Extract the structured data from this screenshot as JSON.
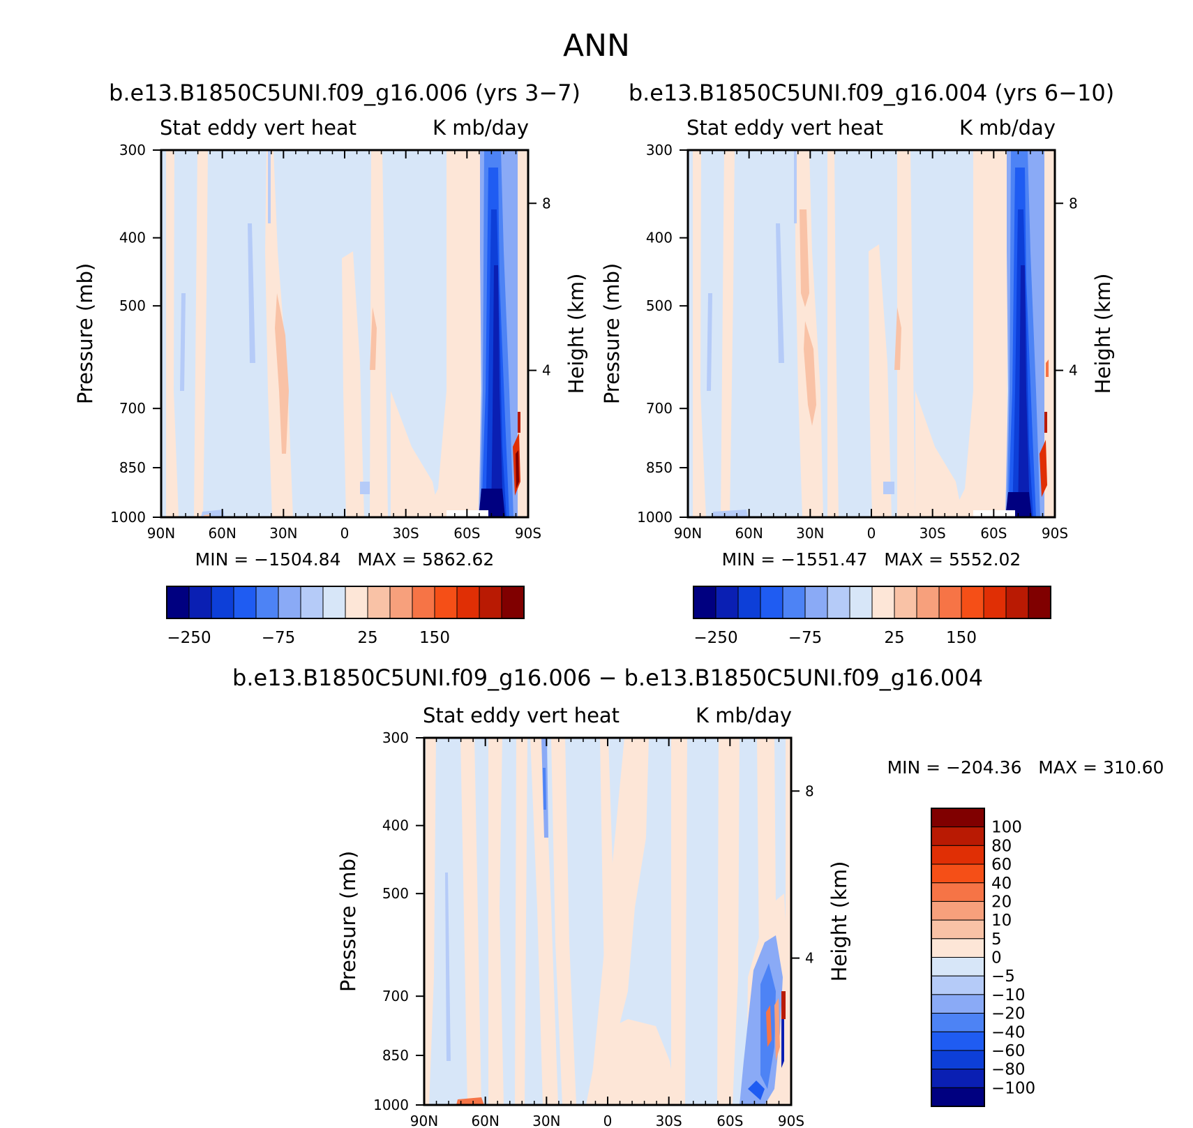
{
  "figure_title": "ANN",
  "colors": {
    "neg": [
      "#000080",
      "#0a1fb3",
      "#0d3fd8",
      "#1f5cf2",
      "#4d83f5",
      "#8aaaf6",
      "#b5cbf8",
      "#d7e6f8"
    ],
    "pos": [
      "#fde6d7",
      "#f9c2a6",
      "#f7a07c",
      "#f67446",
      "#f54f17",
      "#e02f05",
      "#b91a03",
      "#800000"
    ]
  },
  "chart_data": [
    {
      "type": "heatmap",
      "id": "top-left",
      "title": "b.e13.B1850C5UNI.f09_g16.006 (yrs 3−7)",
      "subtitle_left": "Stat eddy vert heat",
      "subtitle_right": "K mb/day",
      "ylabel": "Pressure (mb)",
      "y2label": "Height (km)",
      "x_ticks": [
        "90N",
        "60N",
        "30N",
        "0",
        "30S",
        "60S",
        "90S"
      ],
      "y_ticks": [
        "300",
        "400",
        "500",
        "700",
        "850",
        "1000"
      ],
      "y2_ticks": [
        "8",
        "4"
      ],
      "min_max": "MIN = −1504.84   MAX = 5862.62",
      "colorbar_labels": [
        "−250",
        "−75",
        "25",
        "150"
      ],
      "levels": [
        -250,
        -200,
        -150,
        -100,
        -75,
        -50,
        -25,
        0,
        25,
        50,
        75,
        100,
        150,
        200,
        250
      ]
    },
    {
      "type": "heatmap",
      "id": "top-right",
      "title": "b.e13.B1850C5UNI.f09_g16.004 (yrs 6−10)",
      "subtitle_left": "Stat eddy vert heat",
      "subtitle_right": "K mb/day",
      "ylabel": "Pressure (mb)",
      "y2label": "Height (km)",
      "x_ticks": [
        "90N",
        "60N",
        "30N",
        "0",
        "30S",
        "60S",
        "90S"
      ],
      "y_ticks": [
        "300",
        "400",
        "500",
        "700",
        "850",
        "1000"
      ],
      "y2_ticks": [
        "8",
        "4"
      ],
      "min_max": "MIN = −1551.47   MAX = 5552.02",
      "colorbar_labels": [
        "−250",
        "−75",
        "25",
        "150"
      ],
      "levels": [
        -250,
        -200,
        -150,
        -100,
        -75,
        -50,
        -25,
        0,
        25,
        50,
        75,
        100,
        150,
        200,
        250
      ]
    },
    {
      "type": "heatmap",
      "id": "bottom-diff",
      "title": "b.e13.B1850C5UNI.f09_g16.006 − b.e13.B1850C5UNI.f09_g16.004",
      "subtitle_left": "Stat eddy vert heat",
      "subtitle_right": "K mb/day",
      "ylabel": "Pressure (mb)",
      "y2label": "Height (km)",
      "x_ticks": [
        "90N",
        "60N",
        "30N",
        "0",
        "30S",
        "60S",
        "90S"
      ],
      "y_ticks": [
        "300",
        "400",
        "500",
        "700",
        "850",
        "1000"
      ],
      "y2_ticks": [
        "8",
        "4"
      ],
      "min_max": "MIN = −204.36   MAX = 310.60",
      "colorbar_labels": [
        "100",
        "80",
        "60",
        "40",
        "20",
        "10",
        "5",
        "0",
        "−5",
        "−10",
        "−20",
        "−40",
        "−60",
        "−80",
        "−100"
      ]
    }
  ]
}
